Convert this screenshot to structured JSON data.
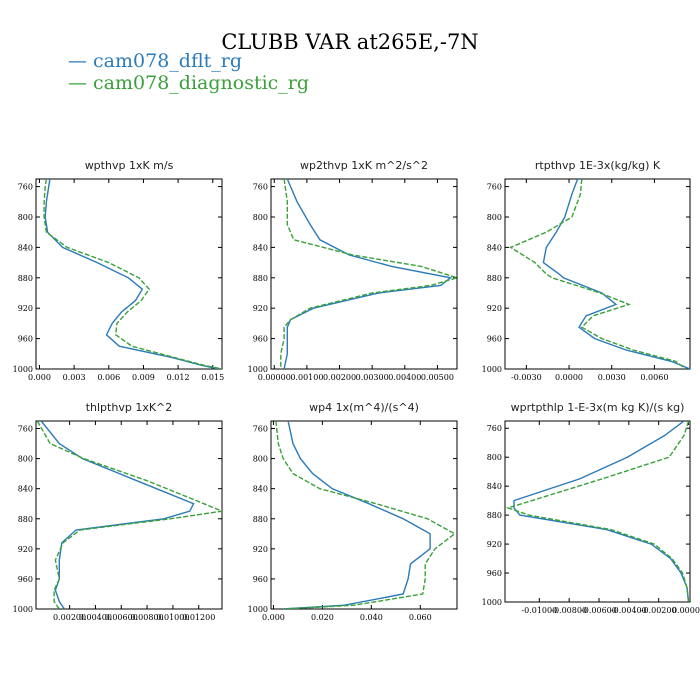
{
  "title": "CLUBB VAR at265E,-7N",
  "legend": [
    {
      "label": "cam078_dflt_rg",
      "color": "#2b7bba"
    },
    {
      "label": "cam078_diagnostic_rg",
      "color": "#3aa03a"
    }
  ],
  "chart_data": [
    {
      "type": "line",
      "title": "wpthvp  1xK m/s",
      "ylim": [
        1000,
        750
      ],
      "y_ticks": [
        "760",
        "800",
        "840",
        "880",
        "920",
        "960",
        "1000"
      ],
      "xlim": [
        -0.0003,
        0.0158
      ],
      "x_ticks": [
        "0.000",
        "0.003",
        "0.006",
        "0.009",
        "0.012",
        "0.015"
      ],
      "y": [
        750,
        760,
        780,
        800,
        820,
        840,
        860,
        880,
        895,
        910,
        925,
        940,
        955,
        970,
        985,
        995,
        1000
      ],
      "series": [
        {
          "name": "cam078_dflt_rg",
          "x": [
            0.0009,
            0.0008,
            0.0006,
            0.0005,
            0.0007,
            0.002,
            0.005,
            0.0077,
            0.0089,
            0.0083,
            0.0071,
            0.0063,
            0.0058,
            0.0069,
            0.0115,
            0.014,
            0.0155
          ]
        },
        {
          "name": "cam078_diagnostic_rg",
          "x": [
            0.0006,
            0.0005,
            0.0004,
            0.0004,
            0.0006,
            0.0024,
            0.006,
            0.0086,
            0.0095,
            0.0088,
            0.0076,
            0.0067,
            0.0066,
            0.008,
            0.0117,
            0.0142,
            0.0158
          ]
        }
      ]
    },
    {
      "type": "line",
      "title": "wp2thvp  1xK m^2/s^2",
      "ylim": [
        1000,
        750
      ],
      "y_ticks": [
        "760",
        "800",
        "840",
        "880",
        "920",
        "960",
        "1000"
      ],
      "xlim": [
        -0.0001,
        0.0056
      ],
      "x_ticks": [
        "0.00000",
        "0.00100",
        "0.00200",
        "0.00300",
        "0.00400",
        "0.00500"
      ],
      "y": [
        750,
        780,
        810,
        830,
        850,
        865,
        880,
        890,
        900,
        920,
        935,
        945,
        960,
        980,
        1000
      ],
      "series": [
        {
          "name": "cam078_dflt_rg",
          "x": [
            0.0004,
            0.0007,
            0.0011,
            0.0014,
            0.0023,
            0.0036,
            0.0054,
            0.0051,
            0.0032,
            0.0012,
            0.0005,
            0.0004,
            0.0004,
            0.0004,
            0.0003
          ]
        },
        {
          "name": "cam078_diagnostic_rg",
          "x": [
            0.0003,
            0.0004,
            0.0004,
            0.0006,
            0.0024,
            0.0045,
            0.0056,
            0.0048,
            0.003,
            0.0011,
            0.0005,
            0.0003,
            0.0003,
            0.0002,
            0.0002
          ]
        }
      ]
    },
    {
      "type": "line",
      "title": "rtpthvp  1E-3x(kg/kg) K",
      "ylim": [
        1000,
        750
      ],
      "y_ticks": [
        "760",
        "800",
        "840",
        "880",
        "920",
        "960",
        "1000"
      ],
      "xlim": [
        -0.0045,
        0.0085
      ],
      "x_ticks": [
        "-0.0030",
        "0.0000",
        "0.0030",
        "0.0060"
      ],
      "y": [
        750,
        770,
        800,
        820,
        840,
        860,
        875,
        880,
        900,
        915,
        930,
        945,
        960,
        975,
        990,
        1000
      ],
      "series": [
        {
          "name": "cam078_dflt_rg",
          "x": [
            0.0006,
            0.0002,
            -0.0003,
            -0.0009,
            -0.0016,
            -0.0018,
            -0.0007,
            -0.0004,
            0.0023,
            0.0033,
            0.0012,
            0.0007,
            0.0018,
            0.004,
            0.0072,
            0.0085
          ]
        },
        {
          "name": "cam078_diagnostic_rg",
          "x": [
            0.0009,
            0.0008,
            0.0002,
            -0.0016,
            -0.0041,
            -0.0024,
            -0.0016,
            -0.0012,
            0.0022,
            0.0042,
            0.0017,
            0.0009,
            0.0023,
            0.0045,
            0.0075,
            0.0082
          ]
        }
      ]
    },
    {
      "type": "line",
      "title": "thlpthvp  1xK^2",
      "ylim": [
        1000,
        750
      ],
      "y_ticks": [
        "760",
        "800",
        "840",
        "880",
        "920",
        "960",
        "1000"
      ],
      "xlim": [
        -0.0006,
        0.0138
      ],
      "x_ticks": [
        "0.00200",
        "0.00400",
        "0.00600",
        "0.00800",
        "0.01000",
        "0.01200"
      ],
      "y": [
        750,
        780,
        800,
        830,
        860,
        870,
        880,
        895,
        912,
        935,
        960,
        975,
        990,
        1000
      ],
      "series": [
        {
          "name": "cam078_dflt_rg",
          "x": [
            -0.0002,
            0.0012,
            0.003,
            0.0073,
            0.0116,
            0.0113,
            0.0093,
            0.0025,
            0.0014,
            0.0012,
            0.0012,
            0.0009,
            0.0012,
            0.0016
          ]
        },
        {
          "name": "cam078_diagnostic_rg",
          "x": [
            -0.0005,
            0.0005,
            0.0031,
            0.0081,
            0.0124,
            0.0138,
            0.0098,
            0.0028,
            0.0015,
            0.0009,
            0.0012,
            0.0008,
            0.0008,
            0.0012
          ]
        }
      ]
    },
    {
      "type": "line",
      "title": "wp4  1x(m^4)/(s^4)",
      "ylim": [
        1000,
        750
      ],
      "y_ticks": [
        "760",
        "800",
        "840",
        "880",
        "920",
        "960",
        "1000"
      ],
      "xlim": [
        -0.001,
        0.075
      ],
      "x_ticks": [
        "0.000",
        "0.020",
        "0.040",
        "0.060"
      ],
      "y": [
        750,
        780,
        800,
        820,
        840,
        860,
        880,
        900,
        920,
        940,
        960,
        980,
        995,
        1000
      ],
      "series": [
        {
          "name": "cam078_dflt_rg",
          "x": [
            0.006,
            0.008,
            0.011,
            0.016,
            0.024,
            0.039,
            0.053,
            0.064,
            0.064,
            0.056,
            0.055,
            0.053,
            0.029,
            0.004
          ]
        },
        {
          "name": "cam078_diagnostic_rg",
          "x": [
            0.001,
            0.002,
            0.004,
            0.008,
            0.019,
            0.042,
            0.063,
            0.074,
            0.066,
            0.062,
            0.062,
            0.061,
            0.033,
            0.004
          ]
        }
      ]
    },
    {
      "type": "line",
      "title": "wprtpthlp  1-E-3x(m kg K)/(s kg)",
      "ylim": [
        1000,
        750
      ],
      "y_ticks": [
        "760",
        "800",
        "840",
        "880",
        "920",
        "960",
        "1000"
      ],
      "xlim": [
        -0.0123,
        0.0001
      ],
      "x_ticks": [
        "-0.01000",
        "-0.00800",
        "-0.00600",
        "-0.00400",
        "-0.00200",
        "0.00000"
      ],
      "y": [
        750,
        770,
        800,
        830,
        860,
        870,
        880,
        900,
        920,
        940,
        960,
        980,
        1000
      ],
      "series": [
        {
          "name": "cam078_dflt_rg",
          "x": [
            -0.0003,
            -0.0016,
            -0.0041,
            -0.0073,
            -0.0117,
            -0.0117,
            -0.0113,
            -0.0055,
            -0.0025,
            -0.0012,
            -0.0005,
            -0.0001,
            0.0
          ]
        },
        {
          "name": "cam078_diagnostic_rg",
          "x": [
            0.0,
            -0.0003,
            -0.0013,
            -0.0058,
            -0.0105,
            -0.0121,
            -0.0107,
            -0.0052,
            -0.0023,
            -0.0011,
            -0.0004,
            -0.0001,
            0.0
          ]
        }
      ]
    }
  ]
}
